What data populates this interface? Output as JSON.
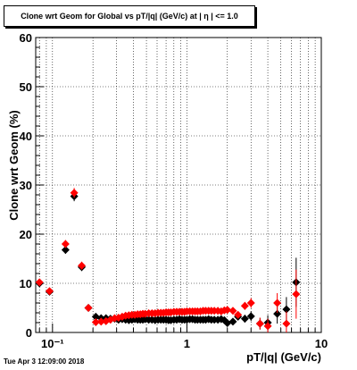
{
  "chart_data": {
    "type": "scatter",
    "title": "Clone wrt Geom for Global vs pT/|q| (GeV/c) at |  η | <= 1.0",
    "xlabel": "pT/|q| (GeV/c)",
    "ylabel": "Clone wrt Geom (%)",
    "x_scale": "log",
    "xlim": [
      0.075,
      10
    ],
    "ylim": [
      0,
      60
    ],
    "yticks": [
      0,
      10,
      20,
      30,
      40,
      50,
      60
    ],
    "ytick_labels": [
      "0",
      "10",
      "20",
      "30",
      "40",
      "50",
      "60"
    ],
    "xticks": [
      0.1,
      1,
      10
    ],
    "xtick_labels": [
      "10⁻¹",
      "1",
      "10"
    ],
    "grid": true,
    "series": [
      {
        "color": "#000000",
        "marker": "diamond",
        "x": [
          0.08,
          0.095,
          0.125,
          0.145,
          0.165,
          0.185,
          0.21,
          0.23,
          0.25,
          0.27,
          0.29,
          0.31,
          0.33,
          0.35,
          0.37,
          0.39,
          0.41,
          0.43,
          0.45,
          0.47,
          0.49,
          0.52,
          0.55,
          0.58,
          0.61,
          0.64,
          0.67,
          0.7,
          0.73,
          0.76,
          0.8,
          0.84,
          0.88,
          0.92,
          0.96,
          1.0,
          1.05,
          1.1,
          1.15,
          1.2,
          1.26,
          1.32,
          1.38,
          1.45,
          1.52,
          1.6,
          1.7,
          1.8,
          1.9,
          2.0,
          2.2,
          2.4,
          2.7,
          3.0,
          3.5,
          4.0,
          4.7,
          5.5,
          6.5
        ],
        "y": [
          10.0,
          8.3,
          16.8,
          27.7,
          13.3,
          5.0,
          3.2,
          2.9,
          2.9,
          2.8,
          2.8,
          2.6,
          2.7,
          2.6,
          2.5,
          2.6,
          2.7,
          2.6,
          2.6,
          2.6,
          2.7,
          2.6,
          2.6,
          2.5,
          2.6,
          2.6,
          2.6,
          2.6,
          2.5,
          2.5,
          2.6,
          2.6,
          2.7,
          2.6,
          2.6,
          2.6,
          2.7,
          2.7,
          2.6,
          2.6,
          2.6,
          2.6,
          2.6,
          2.7,
          2.6,
          2.6,
          2.6,
          2.7,
          2.5,
          1.9,
          2.2,
          3.2,
          2.8,
          3.3,
          1.8,
          2.0,
          3.8,
          4.7,
          10.2
        ],
        "yerr": [
          0.5,
          0.5,
          0.8,
          1.0,
          0.8,
          0.5,
          0.3,
          0.2,
          0.2,
          0.2,
          0.2,
          0.2,
          0.2,
          0.2,
          0.2,
          0.2,
          0.2,
          0.2,
          0.2,
          0.2,
          0.2,
          0.2,
          0.2,
          0.2,
          0.2,
          0.2,
          0.2,
          0.2,
          0.2,
          0.2,
          0.2,
          0.2,
          0.2,
          0.2,
          0.2,
          0.2,
          0.2,
          0.2,
          0.2,
          0.2,
          0.2,
          0.2,
          0.3,
          0.3,
          0.3,
          0.3,
          0.3,
          0.4,
          0.4,
          0.4,
          0.5,
          0.7,
          0.8,
          1.0,
          1.2,
          1.5,
          2.0,
          2.5,
          5.0
        ]
      },
      {
        "color": "#ff0000",
        "marker": "diamond",
        "x": [
          0.08,
          0.095,
          0.125,
          0.145,
          0.165,
          0.185,
          0.21,
          0.23,
          0.25,
          0.27,
          0.29,
          0.31,
          0.33,
          0.35,
          0.37,
          0.39,
          0.41,
          0.43,
          0.45,
          0.47,
          0.49,
          0.52,
          0.55,
          0.58,
          0.61,
          0.64,
          0.67,
          0.7,
          0.73,
          0.76,
          0.8,
          0.84,
          0.88,
          0.92,
          0.96,
          1.0,
          1.05,
          1.1,
          1.15,
          1.2,
          1.26,
          1.32,
          1.38,
          1.45,
          1.52,
          1.6,
          1.7,
          1.8,
          1.9,
          2.0,
          2.2,
          2.4,
          2.7,
          3.0,
          3.5,
          4.0,
          4.7,
          5.5,
          6.5
        ],
        "y": [
          10.2,
          8.4,
          18.0,
          28.4,
          13.6,
          5.0,
          2.1,
          2.2,
          2.3,
          2.6,
          2.9,
          3.0,
          3.2,
          3.4,
          3.5,
          3.6,
          3.6,
          3.7,
          3.7,
          3.8,
          3.8,
          3.9,
          3.9,
          3.9,
          4.0,
          4.0,
          4.0,
          4.1,
          4.1,
          4.1,
          4.2,
          4.2,
          4.2,
          4.2,
          4.2,
          4.3,
          4.3,
          4.3,
          4.3,
          4.3,
          4.3,
          4.4,
          4.4,
          4.4,
          4.4,
          4.4,
          4.4,
          4.3,
          4.5,
          4.6,
          4.4,
          3.6,
          5.4,
          6.0,
          1.8,
          1.3,
          6.0,
          1.8,
          7.8
        ],
        "yerr": [
          0.5,
          0.5,
          0.8,
          1.0,
          0.8,
          0.5,
          0.3,
          0.2,
          0.2,
          0.2,
          0.2,
          0.2,
          0.2,
          0.2,
          0.2,
          0.2,
          0.2,
          0.2,
          0.2,
          0.2,
          0.2,
          0.2,
          0.2,
          0.2,
          0.2,
          0.2,
          0.2,
          0.2,
          0.2,
          0.2,
          0.2,
          0.2,
          0.2,
          0.2,
          0.2,
          0.2,
          0.2,
          0.2,
          0.2,
          0.2,
          0.2,
          0.2,
          0.3,
          0.3,
          0.3,
          0.3,
          0.3,
          0.4,
          0.4,
          0.4,
          0.5,
          0.7,
          0.8,
          1.0,
          1.2,
          1.5,
          2.0,
          2.5,
          5.0
        ]
      }
    ]
  },
  "footer": "Tue Apr  3 12:09:00 2018"
}
